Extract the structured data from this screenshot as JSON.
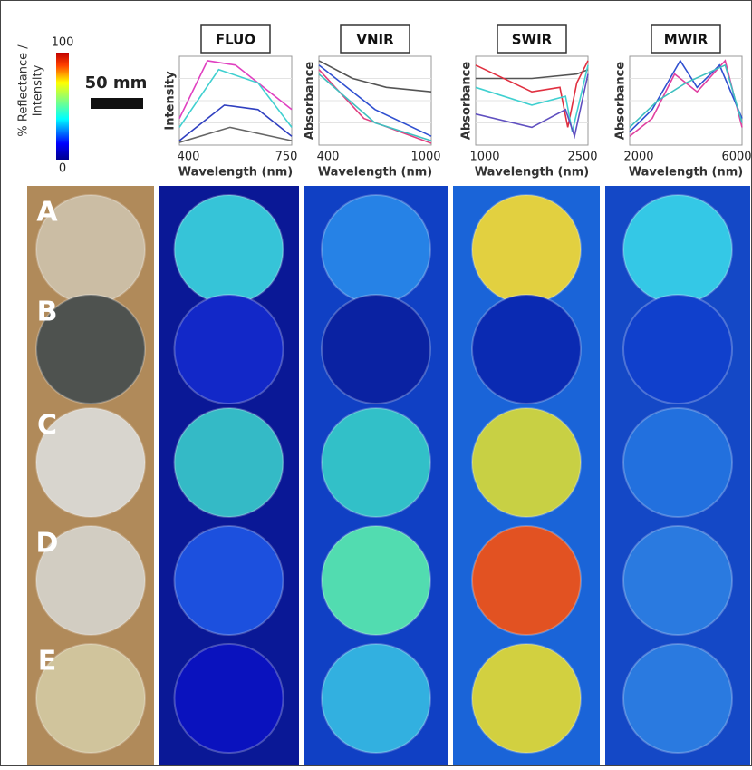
{
  "colorbar": {
    "label": [
      "% Reflectance /",
      "Intensity"
    ],
    "max": "100",
    "min": "0"
  },
  "scale_bar": "50 mm",
  "panels": [
    {
      "title": "FLUO",
      "y_label": "Intensity",
      "x_label": "Wavelength (nm)",
      "x_ticks": [
        "400",
        "750"
      ]
    },
    {
      "title": "VNIR",
      "y_label": "Absorbance",
      "x_label": "Wavelength (nm)",
      "x_ticks": [
        "400",
        "1000"
      ]
    },
    {
      "title": "SWIR",
      "y_label": "Absorbance",
      "x_label": "Wavelength (nm)",
      "x_ticks": [
        "1000",
        "2500"
      ]
    },
    {
      "title": "MWIR",
      "y_label": "Absorbance",
      "x_label": "Wavelength (nm)",
      "x_ticks": [
        "2000",
        "6000"
      ]
    }
  ],
  "samples": [
    "A",
    "B",
    "C",
    "D",
    "E"
  ]
}
